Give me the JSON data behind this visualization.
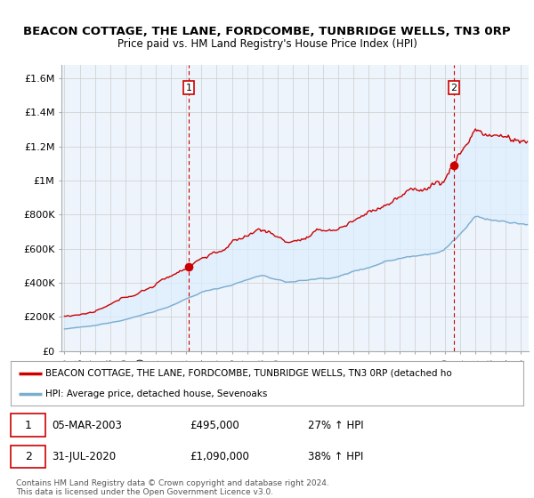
{
  "title": "BEACON COTTAGE, THE LANE, FORDCOMBE, TUNBRIDGE WELLS, TN3 0RP",
  "subtitle": "Price paid vs. HM Land Registry's House Price Index (HPI)",
  "ylabel_ticks": [
    "£0",
    "£200K",
    "£400K",
    "£600K",
    "£800K",
    "£1M",
    "£1.2M",
    "£1.4M",
    "£1.6M"
  ],
  "ytick_values": [
    0,
    200000,
    400000,
    600000,
    800000,
    1000000,
    1200000,
    1400000,
    1600000
  ],
  "ylim": [
    0,
    1680000
  ],
  "xlim_start": 1994.8,
  "xlim_end": 2025.5,
  "red_line_color": "#cc0000",
  "blue_line_color": "#7aadcf",
  "fill_color": "#ddeeff",
  "dashed_line_color": "#cc0000",
  "transaction1_x": 2003.17,
  "transaction1_y": 495000,
  "transaction1_label": "1",
  "transaction2_x": 2020.58,
  "transaction2_y": 1090000,
  "transaction2_label": "2",
  "legend_line1": "BEACON COTTAGE, THE LANE, FORDCOMBE, TUNBRIDGE WELLS, TN3 0RP (detached ho",
  "legend_line2": "HPI: Average price, detached house, Sevenoaks",
  "annotation1_date": "05-MAR-2003",
  "annotation1_price": "£495,000",
  "annotation1_hpi": "27% ↑ HPI",
  "annotation2_date": "31-JUL-2020",
  "annotation2_price": "£1,090,000",
  "annotation2_hpi": "38% ↑ HPI",
  "footer": "Contains HM Land Registry data © Crown copyright and database right 2024.\nThis data is licensed under the Open Government Licence v3.0.",
  "background_color": "#ffffff",
  "grid_color": "#cccccc",
  "chart_bg": "#eef4fb"
}
